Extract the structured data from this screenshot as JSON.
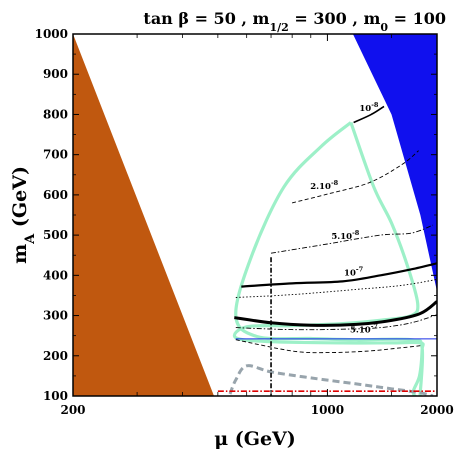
{
  "chart_data": {
    "type": "contour",
    "title": {
      "prefix": "tan β = 50 ,  m",
      "sub1": "1/2",
      "mid": " = 300 ,  m",
      "sub2": "0",
      "suffix": " = 100"
    },
    "xlabel": "μ (GeV)",
    "ylabel": {
      "main": "m",
      "sub": "A",
      "unit": " (GeV)"
    },
    "xlim": [
      200,
      2000
    ],
    "ylim": [
      100,
      1000
    ],
    "x_ticks": [
      200,
      1000,
      2000
    ],
    "y_ticks": [
      100,
      200,
      300,
      400,
      500,
      600,
      700,
      800,
      900,
      1000
    ],
    "colors": {
      "excluded_left": "#c0580f",
      "excluded_right": "#1010ee",
      "favoured_band": "#9df0c8",
      "gray_dashed": "#98a4ac",
      "red_dashdot": "#dd0000",
      "blue_line": "#1a2ee8",
      "background": "#ffffff"
    },
    "regions": {
      "left_boundary": [
        [
          200,
          1000
        ],
        [
          488,
          100
        ]
      ],
      "right_boundary": [
        [
          1175,
          1000
        ],
        [
          1500,
          800
        ],
        [
          1800,
          550
        ],
        [
          2000,
          360
        ]
      ]
    },
    "contours": [
      {
        "label": "10-8",
        "style": "solid-medium",
        "points": [
          [
            1180,
            780
          ],
          [
            1320,
            800
          ],
          [
            1430,
            820
          ]
        ]
      },
      {
        "label": "2.10-8",
        "style": "dashed-thin",
        "points": [
          [
            800,
            580
          ],
          [
            1000,
            602
          ],
          [
            1300,
            630
          ],
          [
            1600,
            675
          ],
          [
            1780,
            710
          ]
        ]
      },
      {
        "label": "5.10-8",
        "style": "dashdot-thin",
        "points": [
          [
            700,
            455
          ],
          [
            1000,
            478
          ],
          [
            1400,
            500
          ],
          [
            1700,
            505
          ],
          [
            1950,
            525
          ]
        ]
      },
      {
        "label": "10-7",
        "style": "solid-thick",
        "points": [
          [
            580,
            372
          ],
          [
            800,
            380
          ],
          [
            1100,
            385
          ],
          [
            1400,
            400
          ],
          [
            1700,
            415
          ],
          [
            2000,
            430
          ]
        ]
      },
      {
        "label": "",
        "style": "dotted-thin",
        "points": [
          [
            560,
            345
          ],
          [
            800,
            352
          ],
          [
            1200,
            365
          ],
          [
            1600,
            375
          ],
          [
            2000,
            390
          ]
        ]
      },
      {
        "label": "",
        "style": "solid-heavy",
        "points": [
          [
            555,
            295
          ],
          [
            700,
            282
          ],
          [
            900,
            276
          ],
          [
            1200,
            278
          ],
          [
            1500,
            288
          ],
          [
            1800,
            305
          ],
          [
            2000,
            335
          ]
        ]
      },
      {
        "label": "5.10-7",
        "style": "dashdot-thin",
        "points": [
          [
            560,
            270
          ],
          [
            800,
            265
          ],
          [
            1100,
            266
          ],
          [
            1400,
            270
          ],
          [
            1700,
            282
          ],
          [
            2000,
            302
          ]
        ]
      },
      {
        "label": "",
        "style": "dashed-thin",
        "points": [
          [
            560,
            240
          ],
          [
            800,
            212
          ],
          [
            1000,
            208
          ],
          [
            1300,
            212
          ],
          [
            1600,
            220
          ],
          [
            1800,
            225
          ]
        ]
      }
    ],
    "favoured_band": [
      [
        1160,
        780
      ],
      [
        1340,
        620
      ],
      [
        1500,
        530
      ],
      [
        1650,
        430
      ],
      [
        1770,
        330
      ],
      [
        1700,
        300
      ],
      [
        1450,
        290
      ],
      [
        1100,
        280
      ],
      [
        800,
        275
      ],
      [
        600,
        272
      ],
      [
        560,
        245
      ],
      [
        700,
        235
      ],
      [
        1100,
        232
      ],
      [
        1500,
        232
      ],
      [
        1800,
        232
      ],
      [
        1820,
        215
      ],
      [
        1790,
        150
      ],
      [
        1720,
        110
      ],
      [
        1780,
        95
      ],
      [
        1800,
        110
      ],
      [
        1820,
        220
      ],
      [
        1700,
        240
      ],
      [
        1200,
        240
      ],
      [
        900,
        243
      ],
      [
        640,
        248
      ],
      [
        560,
        300
      ],
      [
        620,
        450
      ],
      [
        760,
        620
      ],
      [
        960,
        720
      ],
      [
        1160,
        780
      ]
    ],
    "gray_dashed": [
      [
        540,
        105
      ],
      [
        560,
        140
      ],
      [
        600,
        175
      ],
      [
        700,
        160
      ],
      [
        900,
        145
      ],
      [
        1200,
        130
      ],
      [
        1500,
        118
      ],
      [
        1800,
        108
      ],
      [
        1950,
        100
      ]
    ],
    "red_dashdot": [
      [
        500,
        112
      ],
      [
        2000,
        112
      ]
    ],
    "vertical_dashdot_x": 700,
    "blue_line_y": 242
  }
}
